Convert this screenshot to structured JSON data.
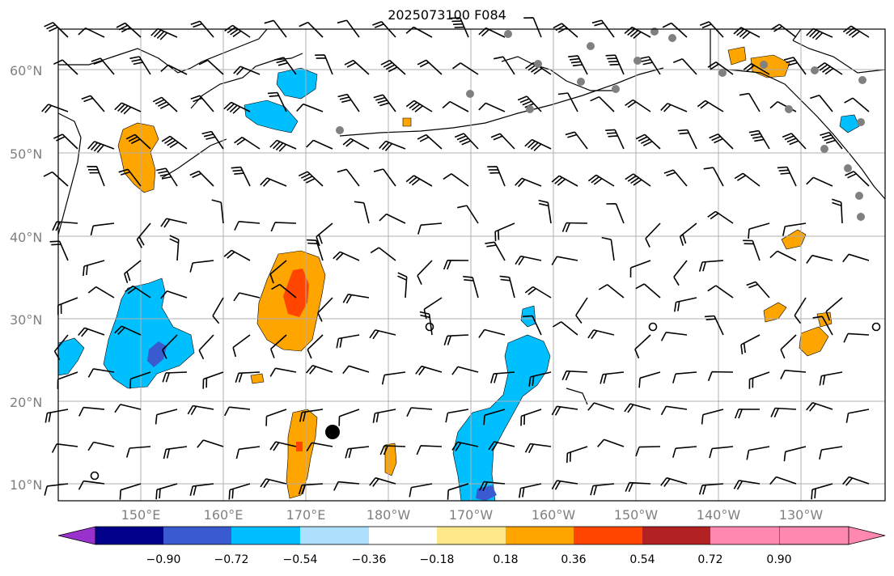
{
  "title": "2025073100 F084",
  "lat_labels": [
    "60°N",
    "50°N",
    "40°N",
    "30°N",
    "20°N",
    "10°N"
  ],
  "lon_labels": [
    "150°E",
    "160°E",
    "170°E",
    "180°W",
    "170°W",
    "160°W",
    "150°W",
    "140°W",
    "130°W"
  ],
  "colorbar": {
    "colors": [
      "#9932CC",
      "#00008B",
      "#3A5BCF",
      "#00BFFF",
      "#ADDFFF",
      "#FFFFFF",
      "#FFE88A",
      "#FFA500",
      "#FF4500",
      "#B22222",
      "#FF88B0"
    ],
    "ticks": [
      "−0.90",
      "−0.72",
      "−0.54",
      "−0.36",
      "−0.18",
      "0.18",
      "0.36",
      "0.54",
      "0.72",
      "0.90"
    ]
  },
  "colors": {
    "gridline": "#b0b0b0",
    "station_marker": "#808080",
    "storm_marker": "#000000"
  }
}
